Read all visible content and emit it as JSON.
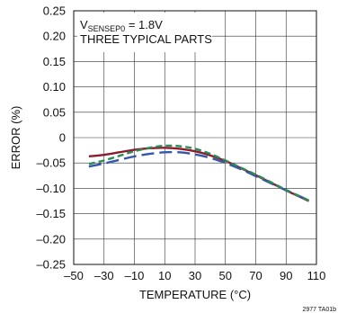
{
  "chart_data": {
    "type": "line",
    "title": "",
    "xlabel": "TEMPERATURE (°C)",
    "ylabel": "ERROR (%)",
    "xlim": [
      -50,
      110
    ],
    "ylim": [
      -0.25,
      0.25
    ],
    "x_ticks": [
      -50,
      -30,
      -10,
      10,
      30,
      50,
      70,
      90,
      110
    ],
    "x_tick_labels": [
      "–50",
      "–30",
      "–10",
      "10",
      "30",
      "50",
      "70",
      "90",
      "110"
    ],
    "y_ticks": [
      0.25,
      0.2,
      0.15,
      0.1,
      0.05,
      0,
      -0.05,
      -0.1,
      -0.15,
      -0.2,
      -0.25
    ],
    "y_tick_labels": [
      "0.25",
      "0.20",
      "0.15",
      "0.10",
      "0.05",
      "0",
      "–0.05",
      "–0.10",
      "–0.15",
      "–0.20",
      "–0.25"
    ],
    "grid": true,
    "annotation": {
      "line1_prefix": "V",
      "line1_sub": "SENSEP0",
      "line1_suffix": " = 1.8V",
      "line2": "THREE TYPICAL PARTS"
    },
    "figure_id": "2977 TA01b",
    "series": [
      {
        "color": "#8a1c2b",
        "dash": "solid",
        "x": [
          -40,
          -30,
          -20,
          -10,
          0,
          10,
          20,
          30,
          40,
          50,
          60,
          70,
          80,
          90,
          100,
          105
        ],
        "y": [
          -0.037,
          -0.034,
          -0.029,
          -0.024,
          -0.021,
          -0.02,
          -0.022,
          -0.027,
          -0.035,
          -0.046,
          -0.06,
          -0.074,
          -0.089,
          -0.104,
          -0.118,
          -0.125
        ]
      },
      {
        "color": "#3355aa",
        "dash": "long-dash",
        "x": [
          -40,
          -30,
          -20,
          -10,
          0,
          10,
          20,
          30,
          40,
          50,
          60,
          70,
          80,
          90,
          100,
          105
        ],
        "y": [
          -0.057,
          -0.051,
          -0.044,
          -0.037,
          -0.032,
          -0.029,
          -0.029,
          -0.033,
          -0.04,
          -0.05,
          -0.062,
          -0.076,
          -0.09,
          -0.104,
          -0.117,
          -0.124
        ]
      },
      {
        "color": "#2e8b57",
        "dash": "dash",
        "x": [
          -40,
          -30,
          -20,
          -10,
          0,
          10,
          20,
          30,
          40,
          50,
          60,
          70,
          80,
          90,
          100,
          105
        ],
        "y": [
          -0.052,
          -0.045,
          -0.036,
          -0.027,
          -0.02,
          -0.016,
          -0.017,
          -0.022,
          -0.032,
          -0.045,
          -0.059,
          -0.073,
          -0.088,
          -0.103,
          -0.117,
          -0.124
        ]
      }
    ]
  }
}
